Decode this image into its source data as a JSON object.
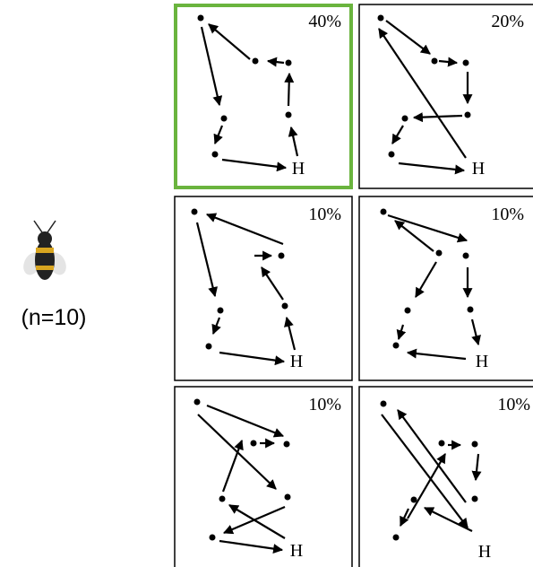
{
  "subject": {
    "label": "(n=10)"
  },
  "panels": [
    {
      "percent": "40%",
      "home": "H"
    },
    {
      "percent": "20%",
      "home": "H"
    },
    {
      "percent": "10%",
      "home": "H"
    },
    {
      "percent": "10%",
      "home": "H"
    },
    {
      "percent": "10%",
      "home": "H"
    },
    {
      "percent": "10%",
      "home": "H"
    }
  ]
}
